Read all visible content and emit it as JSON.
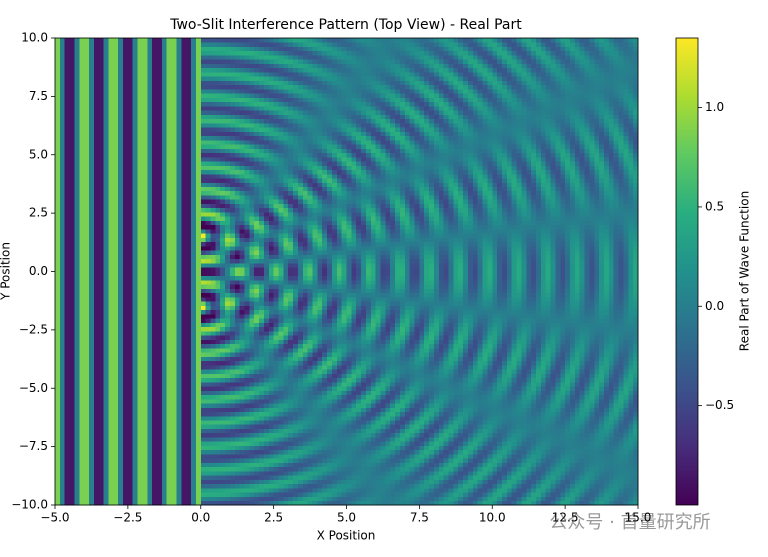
{
  "chart_data": {
    "type": "heatmap",
    "title": "Two-Slit Interference Pattern (Top View) - Real Part",
    "x_label": "X Position",
    "y_label": "Y Position",
    "colorbar_label": "Real Part of Wave Function",
    "watermark": "公众号 · 首量研究所",
    "xlim": [
      -5,
      15
    ],
    "ylim": [
      -10,
      10
    ],
    "clim": [
      -1,
      1.35
    ],
    "colormap": "viridis",
    "wavelength": 1,
    "barrier_x": 0,
    "slits_y": [
      -1.5,
      1.5
    ],
    "xticks": [
      {
        "value": -5,
        "label": "−5.0"
      },
      {
        "value": -2.5,
        "label": "−2.5"
      },
      {
        "value": 0,
        "label": "0.0"
      },
      {
        "value": 2.5,
        "label": "2.5"
      },
      {
        "value": 5,
        "label": "5.0"
      },
      {
        "value": 7.5,
        "label": "7.5"
      },
      {
        "value": 10,
        "label": "10.0"
      },
      {
        "value": 12.5,
        "label": "12.5"
      },
      {
        "value": 15,
        "label": "15.0"
      }
    ],
    "yticks": [
      {
        "value": -10,
        "label": "−10.0"
      },
      {
        "value": -7.5,
        "label": "−7.5"
      },
      {
        "value": -5,
        "label": "−5.0"
      },
      {
        "value": -2.5,
        "label": "−2.5"
      },
      {
        "value": 0,
        "label": "0.0"
      },
      {
        "value": 2.5,
        "label": "2.5"
      },
      {
        "value": 5,
        "label": "5.0"
      },
      {
        "value": 7.5,
        "label": "7.5"
      },
      {
        "value": 10,
        "label": "10.0"
      }
    ],
    "cticks": [
      {
        "value": -0.5,
        "label": "−0.5"
      },
      {
        "value": 0,
        "label": "0.0"
      },
      {
        "value": 0.5,
        "label": "0.5"
      },
      {
        "value": 1,
        "label": "1.0"
      }
    ]
  }
}
